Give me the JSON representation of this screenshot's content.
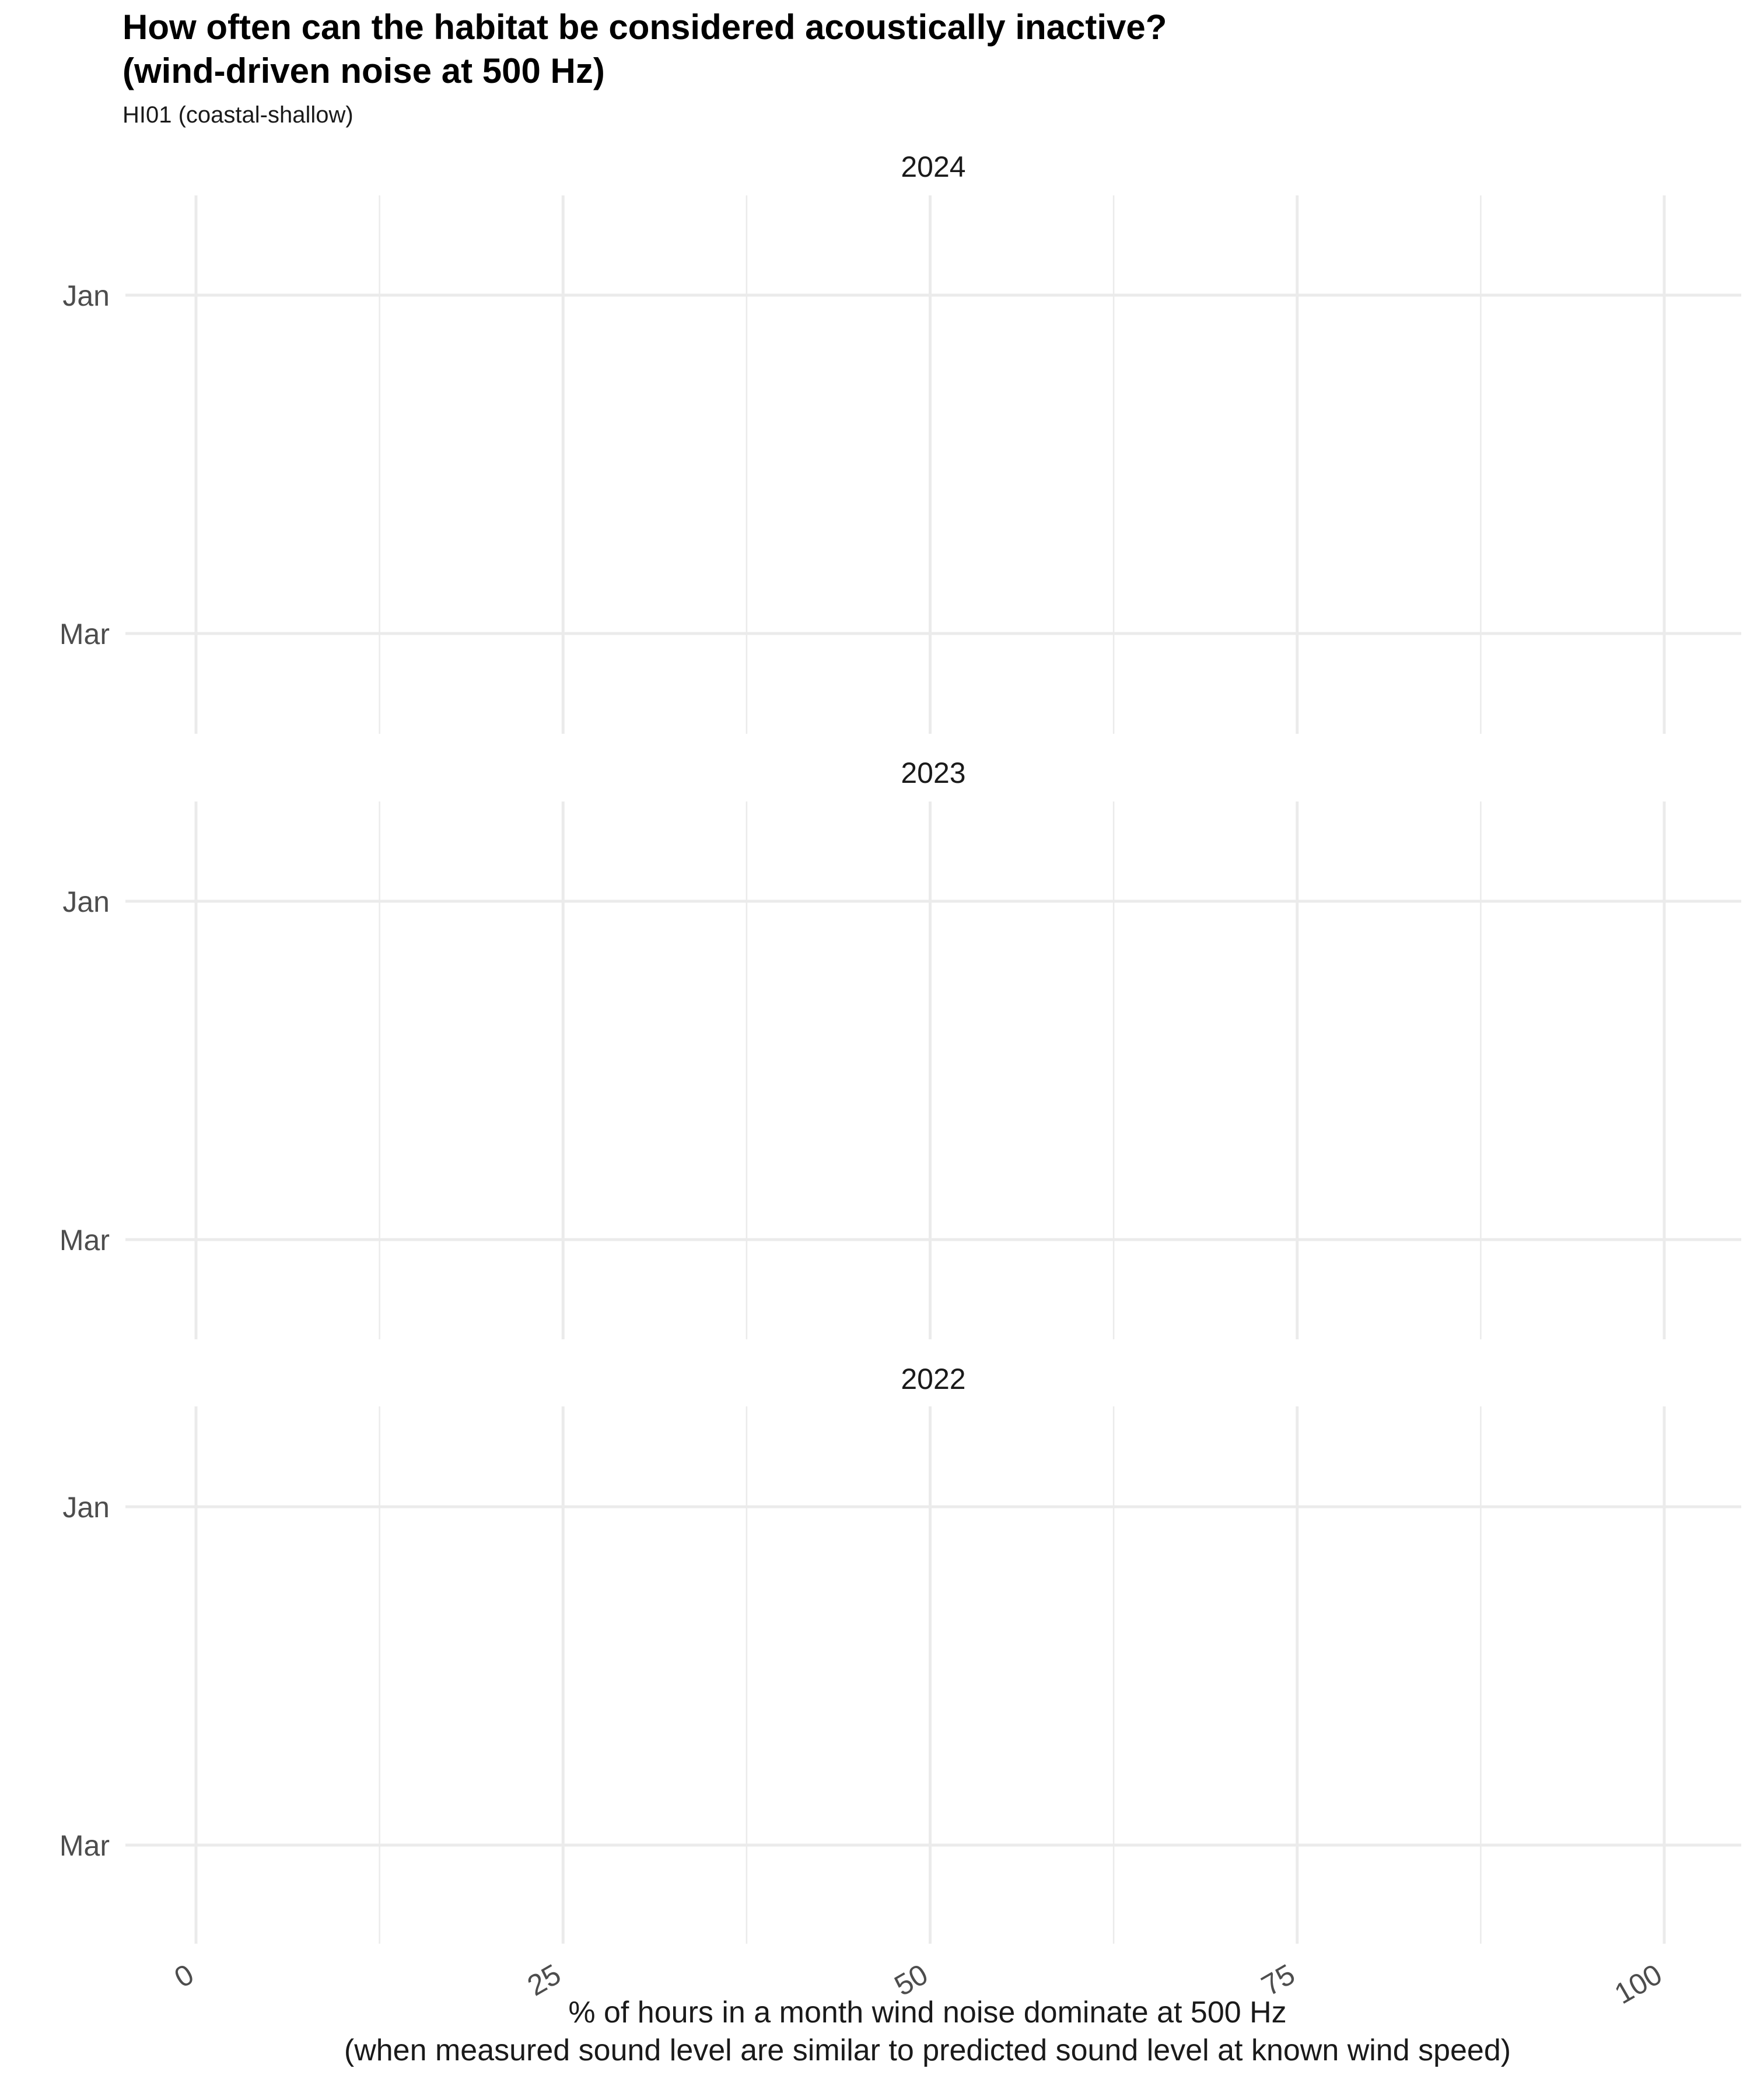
{
  "chart_data": {
    "type": "bar",
    "orientation": "horizontal",
    "title_line1": "How often can the habitat be considered acoustically inactive?",
    "title_line2": "(wind-driven noise at 500 Hz)",
    "subtitle": "HI01 (coastal-shallow)",
    "xlabel_line1": "% of hours in a month wind noise dominate at 500 Hz",
    "xlabel_line2": "(when measured sound level are similar to predicted sound level at known wind speed)",
    "xlim": [
      -2,
      105
    ],
    "x_ticks": [
      0,
      25,
      50,
      75,
      100
    ],
    "x_tick_labels": [
      "0",
      "25",
      "50",
      "75",
      "100"
    ],
    "categories": [
      "Jan",
      "Mar"
    ],
    "facets": [
      {
        "label": "2024",
        "values": []
      },
      {
        "label": "2023",
        "values": []
      },
      {
        "label": "2022",
        "values": []
      }
    ],
    "grid": true,
    "legend": "none",
    "colors": {
      "grid": "#ebebeb",
      "background": "#ffffff"
    }
  }
}
